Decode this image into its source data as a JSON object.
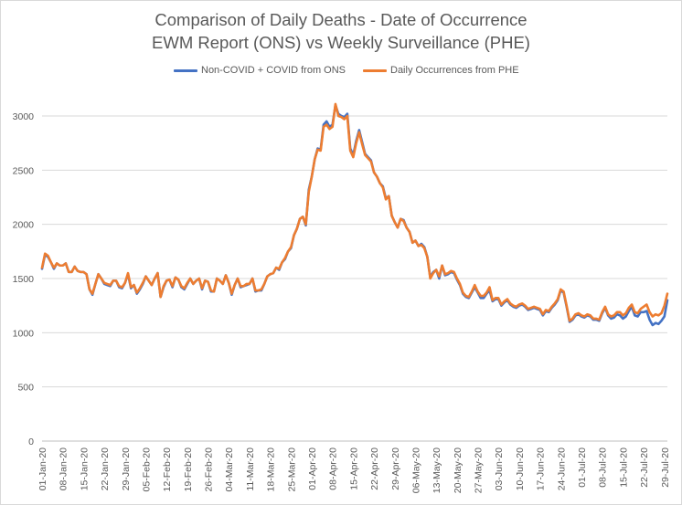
{
  "chart_data": {
    "type": "line",
    "title": "Comparison of Daily Deaths - Date of Occurrence",
    "subtitle": "EWM Report (ONS) vs Weekly Surveillance (PHE)",
    "xlabel": "",
    "ylabel": "",
    "ylim": [
      0,
      3000
    ],
    "yticks": [
      0,
      500,
      1000,
      1500,
      2000,
      2500,
      3000
    ],
    "grid": "horizontal",
    "legend_position": "top",
    "start_date": "2020-01-01",
    "categories_tick_labels": [
      "01-Jan-20",
      "08-Jan-20",
      "15-Jan-20",
      "22-Jan-20",
      "29-Jan-20",
      "05-Feb-20",
      "12-Feb-20",
      "19-Feb-20",
      "26-Feb-20",
      "04-Mar-20",
      "11-Mar-20",
      "18-Mar-20",
      "25-Mar-20",
      "01-Apr-20",
      "08-Apr-20",
      "15-Apr-20",
      "22-Apr-20",
      "29-Apr-20",
      "06-May-20",
      "13-May-20",
      "20-May-20",
      "27-May-20",
      "03-Jun-20",
      "10-Jun-20",
      "17-Jun-20",
      "24-Jun-20",
      "01-Jul-20",
      "08-Jul-20",
      "15-Jul-20",
      "22-Jul-20",
      "29-Jul-20"
    ],
    "series": [
      {
        "name": "Non-COVID + COVID from ONS",
        "color": "#4472c4",
        "values": [
          1590,
          1720,
          1700,
          1650,
          1590,
          1640,
          1620,
          1620,
          1640,
          1560,
          1560,
          1610,
          1570,
          1560,
          1560,
          1540,
          1400,
          1350,
          1450,
          1540,
          1500,
          1450,
          1440,
          1430,
          1480,
          1480,
          1420,
          1410,
          1460,
          1540,
          1410,
          1440,
          1360,
          1400,
          1450,
          1520,
          1480,
          1440,
          1500,
          1550,
          1330,
          1420,
          1480,
          1490,
          1420,
          1510,
          1490,
          1420,
          1400,
          1450,
          1500,
          1450,
          1480,
          1500,
          1400,
          1480,
          1470,
          1380,
          1380,
          1500,
          1480,
          1450,
          1530,
          1460,
          1350,
          1440,
          1500,
          1420,
          1430,
          1440,
          1450,
          1500,
          1380,
          1390,
          1390,
          1450,
          1520,
          1540,
          1550,
          1600,
          1580,
          1650,
          1680,
          1750,
          1780,
          1900,
          1960,
          2050,
          2070,
          1990,
          2320,
          2440,
          2600,
          2700,
          2690,
          2920,
          2950,
          2900,
          2920,
          3100,
          3020,
          3000,
          2990,
          3020,
          2700,
          2640,
          2770,
          2870,
          2760,
          2650,
          2620,
          2590,
          2480,
          2440,
          2380,
          2350,
          2240,
          2260,
          2080,
          2020,
          1970,
          2050,
          2040,
          1970,
          1930,
          1830,
          1850,
          1800,
          1820,
          1790,
          1700,
          1510,
          1560,
          1580,
          1500,
          1620,
          1530,
          1540,
          1560,
          1550,
          1490,
          1440,
          1360,
          1330,
          1320,
          1370,
          1420,
          1370,
          1320,
          1320,
          1360,
          1390,
          1290,
          1310,
          1310,
          1250,
          1280,
          1300,
          1260,
          1240,
          1230,
          1250,
          1260,
          1240,
          1210,
          1220,
          1230,
          1220,
          1210,
          1160,
          1200,
          1190,
          1230,
          1260,
          1300,
          1390,
          1370,
          1240,
          1100,
          1120,
          1160,
          1170,
          1150,
          1140,
          1160,
          1150,
          1120,
          1120,
          1110,
          1180,
          1230,
          1160,
          1130,
          1140,
          1170,
          1160,
          1130,
          1150,
          1200,
          1240,
          1160,
          1150,
          1190,
          1190,
          1200,
          1120,
          1070,
          1090,
          1080,
          1110,
          1150,
          1300
        ]
      },
      {
        "name": "Daily Occurrences from PHE",
        "color": "#ed7d31",
        "values": [
          1600,
          1730,
          1710,
          1650,
          1600,
          1640,
          1620,
          1620,
          1640,
          1560,
          1560,
          1610,
          1570,
          1560,
          1560,
          1540,
          1400,
          1360,
          1450,
          1540,
          1500,
          1460,
          1450,
          1440,
          1480,
          1480,
          1430,
          1420,
          1460,
          1550,
          1420,
          1440,
          1370,
          1410,
          1460,
          1520,
          1480,
          1440,
          1500,
          1550,
          1330,
          1430,
          1480,
          1490,
          1430,
          1510,
          1490,
          1430,
          1410,
          1460,
          1500,
          1450,
          1480,
          1500,
          1410,
          1480,
          1470,
          1390,
          1380,
          1500,
          1480,
          1450,
          1530,
          1460,
          1360,
          1440,
          1500,
          1430,
          1430,
          1450,
          1450,
          1500,
          1390,
          1390,
          1400,
          1450,
          1520,
          1540,
          1550,
          1600,
          1590,
          1650,
          1690,
          1750,
          1790,
          1900,
          1960,
          2050,
          2070,
          2000,
          2300,
          2440,
          2600,
          2690,
          2680,
          2900,
          2920,
          2880,
          2900,
          3110,
          3000,
          2990,
          2970,
          3000,
          2680,
          2620,
          2750,
          2850,
          2740,
          2640,
          2610,
          2580,
          2480,
          2440,
          2380,
          2340,
          2230,
          2260,
          2080,
          2020,
          1970,
          2050,
          2030,
          1970,
          1930,
          1830,
          1850,
          1800,
          1810,
          1780,
          1700,
          1500,
          1550,
          1580,
          1520,
          1620,
          1540,
          1550,
          1570,
          1560,
          1500,
          1450,
          1370,
          1340,
          1330,
          1380,
          1440,
          1380,
          1340,
          1340,
          1370,
          1420,
          1300,
          1320,
          1320,
          1260,
          1290,
          1310,
          1270,
          1250,
          1240,
          1260,
          1270,
          1250,
          1220,
          1230,
          1240,
          1230,
          1220,
          1170,
          1210,
          1200,
          1240,
          1270,
          1310,
          1400,
          1380,
          1250,
          1110,
          1130,
          1170,
          1180,
          1160,
          1150,
          1170,
          1160,
          1130,
          1130,
          1120,
          1190,
          1240,
          1170,
          1150,
          1160,
          1190,
          1190,
          1160,
          1180,
          1230,
          1260,
          1190,
          1180,
          1220,
          1240,
          1260,
          1190,
          1150,
          1170,
          1160,
          1180,
          1250,
          1360
        ]
      }
    ]
  }
}
